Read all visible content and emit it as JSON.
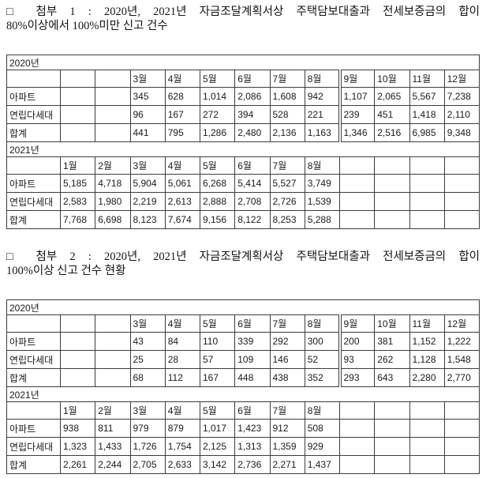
{
  "document": {
    "sections": [
      {
        "title_lines": [
          "□ 첨부 1 : 2020년, 2021년 자금조달계획서상 주택담보대출과 전세보증금의 합이",
          "80%이상에서 100%미만 신고 건수"
        ],
        "tables": [
          {
            "year_label": "2020년",
            "columns": [
              "",
              "",
              "3월",
              "4월",
              "5월",
              "6월",
              "7월",
              "8월",
              "9월",
              "10월",
              "11월",
              "12월"
            ],
            "split_col": 8,
            "rows": [
              {
                "label": "아파트",
                "values": [
                  "",
                  "",
                  "345",
                  "628",
                  "1,014",
                  "2,086",
                  "1,608",
                  "942",
                  "1,107",
                  "2,065",
                  "5,567",
                  "7,238"
                ]
              },
              {
                "label": "연립다세대",
                "values": [
                  "",
                  "",
                  "96",
                  "167",
                  "272",
                  "394",
                  "528",
                  "221",
                  "239",
                  "451",
                  "1,418",
                  "2,110"
                ]
              },
              {
                "label": "합계",
                "values": [
                  "",
                  "",
                  "441",
                  "795",
                  "1,286",
                  "2,480",
                  "2,136",
                  "1,163",
                  "1,346",
                  "2,516",
                  "6,985",
                  "9,348"
                ]
              }
            ]
          },
          {
            "year_label": "2021년",
            "columns": [
              "1월",
              "2월",
              "3월",
              "4월",
              "5월",
              "6월",
              "7월",
              "8월",
              "",
              "",
              "",
              ""
            ],
            "split_col": -1,
            "rows": [
              {
                "label": "아파트",
                "values": [
                  "5,185",
                  "4,718",
                  "5,904",
                  "5,061",
                  "6,268",
                  "5,414",
                  "5,527",
                  "3,749",
                  "",
                  "",
                  "",
                  ""
                ]
              },
              {
                "label": "연립다세대",
                "values": [
                  "2,583",
                  "1,980",
                  "2,219",
                  "2,613",
                  "2,888",
                  "2,708",
                  "2,726",
                  "1,539",
                  "",
                  "",
                  "",
                  ""
                ]
              },
              {
                "label": "합계",
                "values": [
                  "7,768",
                  "6,698",
                  "8,123",
                  "7,674",
                  "9,156",
                  "8,122",
                  "8,253",
                  "5,288",
                  "",
                  "",
                  "",
                  ""
                ]
              }
            ]
          }
        ]
      },
      {
        "title_lines": [
          "□ 첨부 2 : 2020년, 2021년 자금조달계획서상 주택담보대출과 전세보증금의 합이",
          "100%이상 신고 건수 현황"
        ],
        "tables": [
          {
            "year_label": "2020년",
            "columns": [
              "",
              "",
              "3월",
              "4월",
              "5월",
              "6월",
              "7월",
              "8월",
              "9월",
              "10월",
              "11월",
              "12월"
            ],
            "split_col": 8,
            "rows": [
              {
                "label": "아파트",
                "values": [
                  "",
                  "",
                  "43",
                  "84",
                  "110",
                  "339",
                  "292",
                  "300",
                  "200",
                  "381",
                  "1,152",
                  "1,222"
                ]
              },
              {
                "label": "연립다세대",
                "values": [
                  "",
                  "",
                  "25",
                  "28",
                  "57",
                  "109",
                  "146",
                  "52",
                  "93",
                  "262",
                  "1,128",
                  "1,548"
                ]
              },
              {
                "label": "합계",
                "values": [
                  "",
                  "",
                  "68",
                  "112",
                  "167",
                  "448",
                  "438",
                  "352",
                  "293",
                  "643",
                  "2,280",
                  "2,770"
                ]
              }
            ]
          },
          {
            "year_label": "2021년",
            "columns": [
              "1월",
              "2월",
              "3월",
              "4월",
              "5월",
              "6월",
              "7월",
              "8월",
              "",
              "",
              "",
              ""
            ],
            "split_col": -1,
            "rows": [
              {
                "label": "아파트",
                "values": [
                  "938",
                  "811",
                  "979",
                  "879",
                  "1,017",
                  "1,423",
                  "912",
                  "508",
                  "",
                  "",
                  "",
                  ""
                ]
              },
              {
                "label": "연립다세대",
                "values": [
                  "1,323",
                  "1,433",
                  "1,726",
                  "1,754",
                  "2,125",
                  "1,313",
                  "1,359",
                  "929",
                  "",
                  "",
                  "",
                  ""
                ]
              },
              {
                "label": "합계",
                "values": [
                  "2,261",
                  "2,244",
                  "2,705",
                  "2,633",
                  "3,142",
                  "2,736",
                  "2,271",
                  "1,437",
                  "",
                  "",
                  "",
                  ""
                ]
              }
            ]
          }
        ]
      }
    ]
  }
}
